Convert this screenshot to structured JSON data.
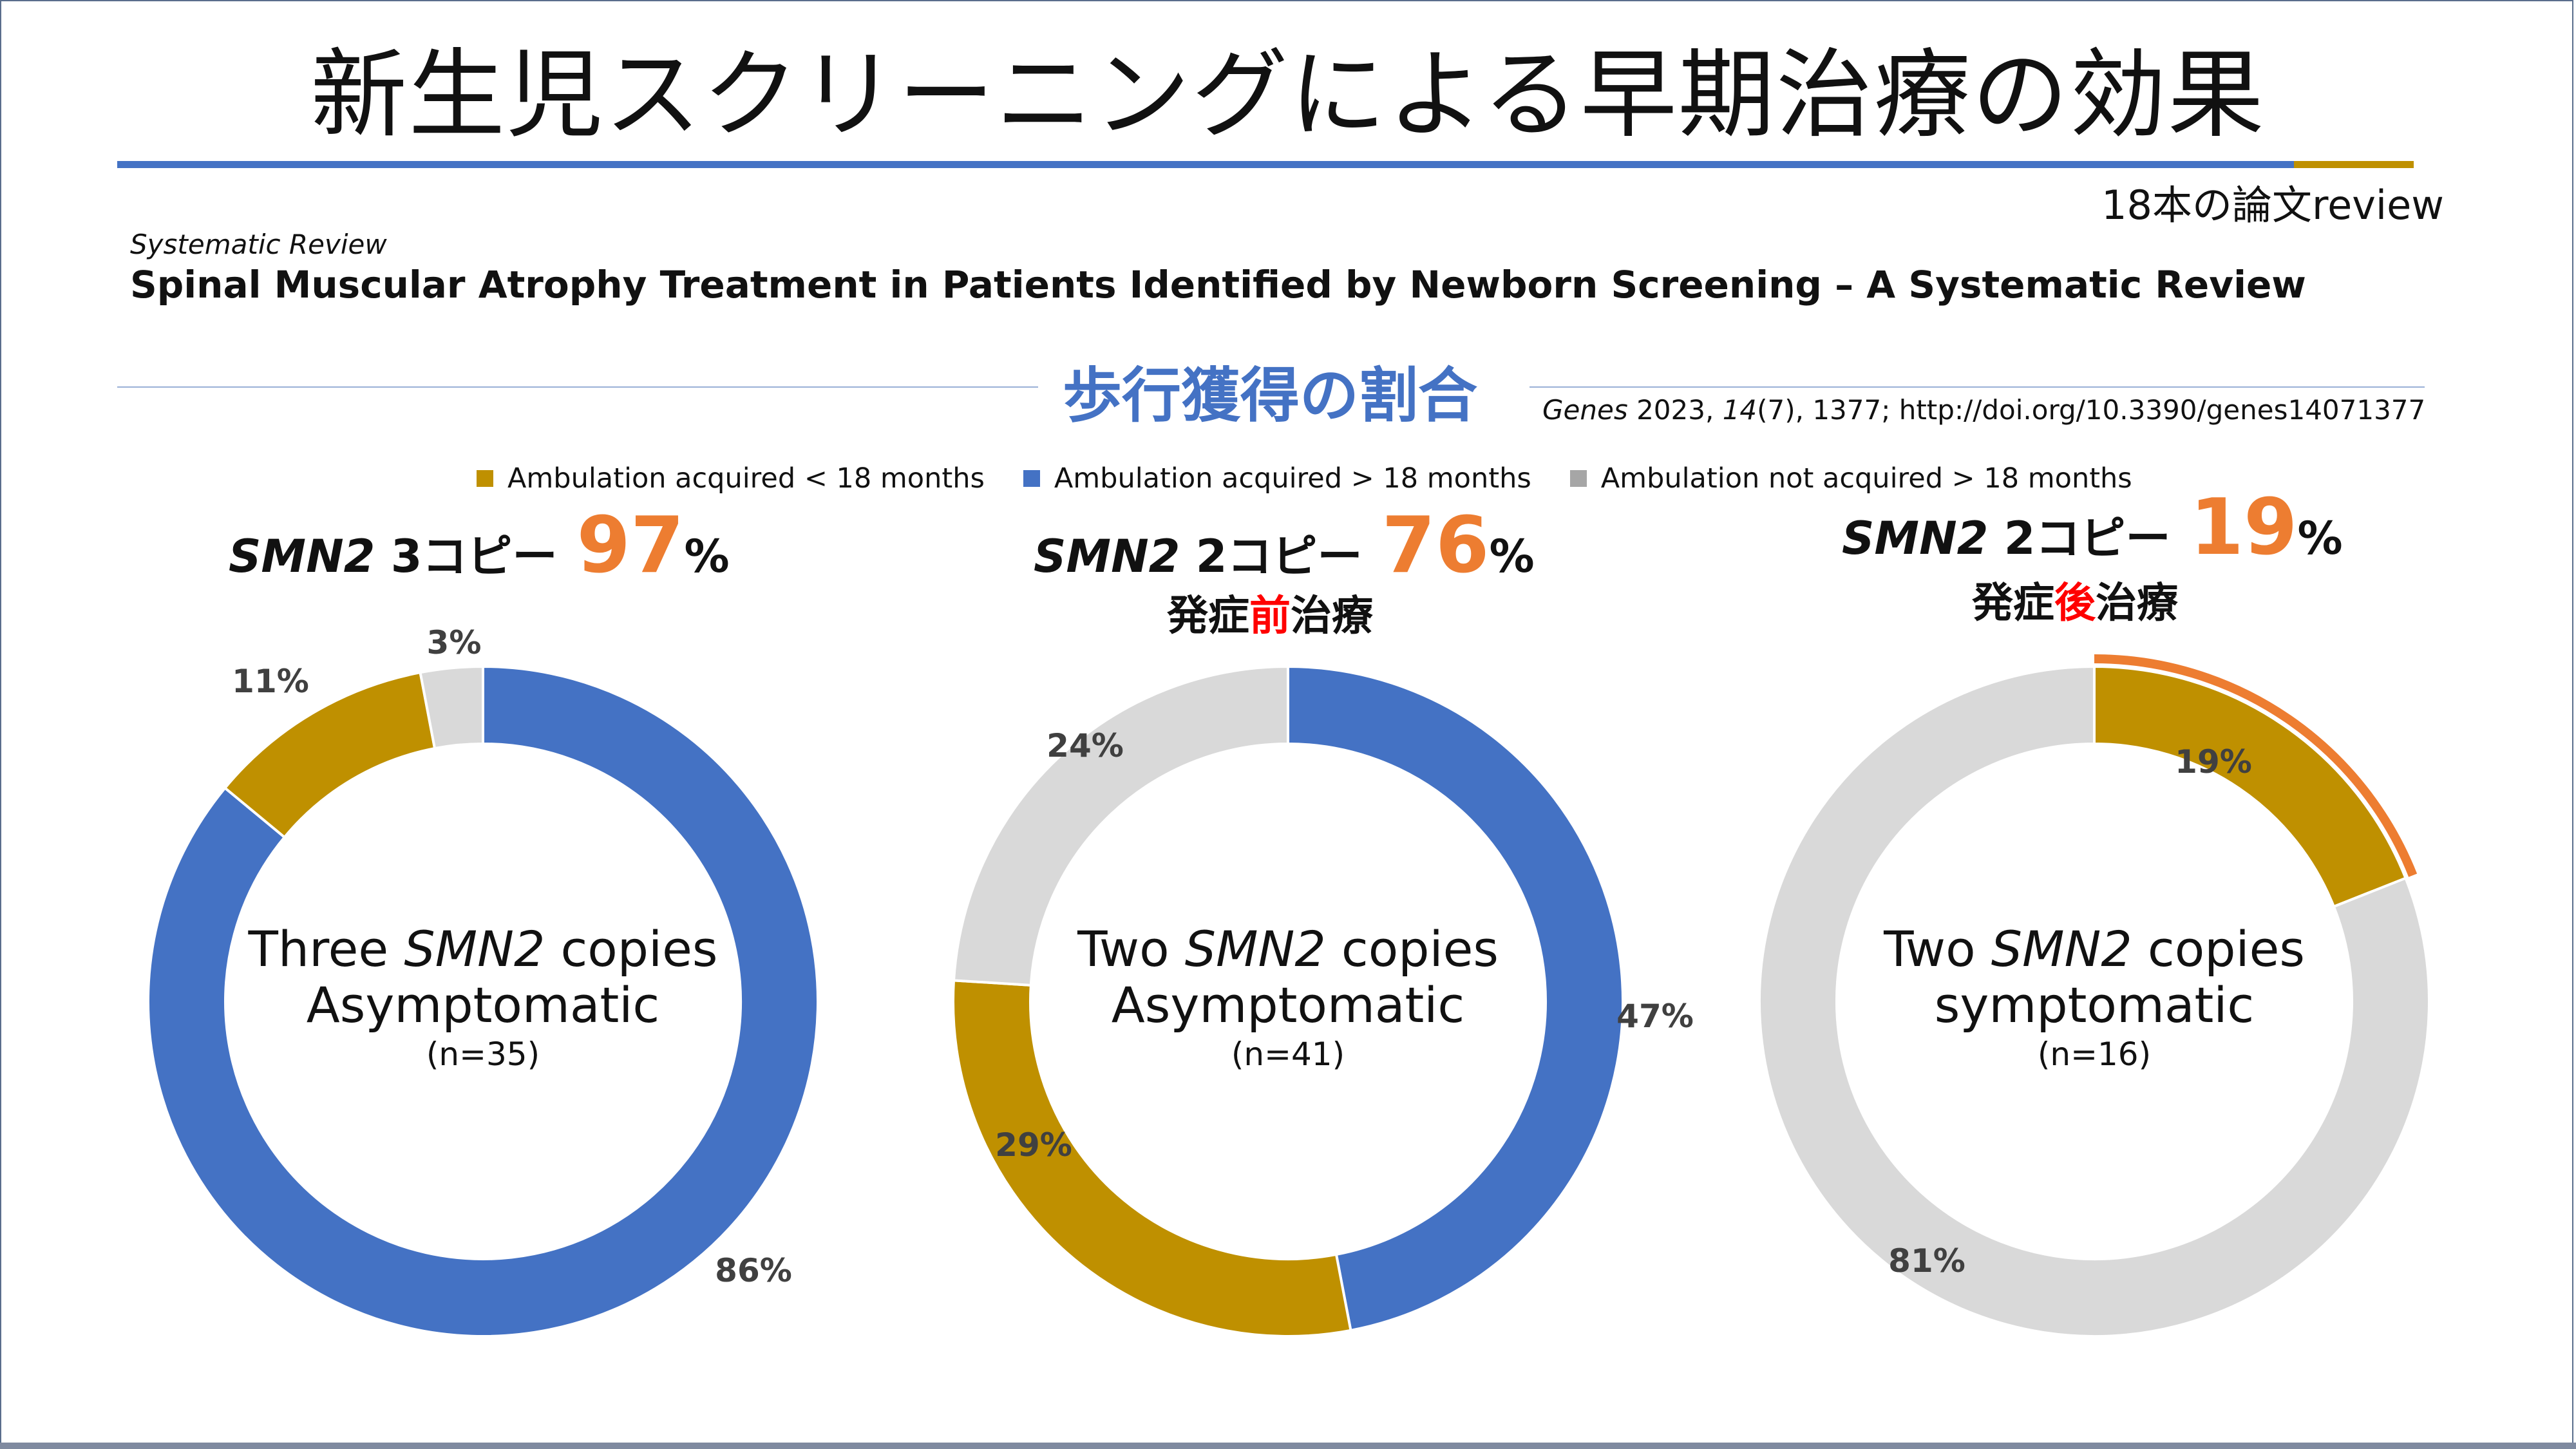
{
  "title": "新生児スクリーニングによる早期治療の効果",
  "review_note": "18本の論文review",
  "paper": {
    "label": "Systematic Review",
    "title": "Spinal Muscular Atrophy Treatment in Patients Identified by Newborn Screening – A Systematic Review",
    "citation": "Genes 2023, 14(7), 1377; http://doi.org/10.3390/genes14071377"
  },
  "section_title": "歩行獲得の割合",
  "colors": {
    "gold": "#bf9000",
    "blue": "#4472c4",
    "gray": "#d9d9d9",
    "highlight": "#ed7d31"
  },
  "legend": [
    {
      "label": "Ambulation acquired < 18 months",
      "color": "#bf9000"
    },
    {
      "label": "Ambulation acquired > 18 months",
      "color": "#4472c4"
    },
    {
      "label": "Ambulation not acquired > 18 months",
      "color": "#a6a6a6"
    }
  ],
  "headers": [
    {
      "gene": "SMN2",
      "copies": "3コピー",
      "pct": "97",
      "sign": "%",
      "sub_a": "",
      "sub_b": "",
      "sub_c": ""
    },
    {
      "gene": "SMN2",
      "copies": "2コピー",
      "pct": "76",
      "sign": "%",
      "sub_a": "発症",
      "sub_b": "前",
      "sub_c": "治療"
    },
    {
      "gene": "SMN2",
      "copies": "2コピー",
      "pct": "19",
      "sign": "%",
      "sub_a": "発症",
      "sub_b": "後",
      "sub_c": "治療"
    }
  ],
  "centers": [
    {
      "line1a": "Three ",
      "line1b": "SMN2",
      "line1c": " copies",
      "line2": "Asymptomatic",
      "n": "(n=35)"
    },
    {
      "line1a": "Two ",
      "line1b": "SMN2",
      "line1c": " copies",
      "line2": "Asymptomatic",
      "n": "(n=41)"
    },
    {
      "line1a": "Two ",
      "line1b": "SMN2",
      "line1c": " copies",
      "line2": "symptomatic",
      "n": "(n=16)"
    }
  ],
  "chart_data": [
    {
      "type": "pie",
      "categories": [
        "Ambulation acquired < 18 months",
        "Ambulation acquired > 18 months",
        "Ambulation not acquired > 18 months"
      ],
      "values": [
        11,
        86,
        3
      ],
      "labels": [
        "11%",
        "86%",
        "3%"
      ]
    },
    {
      "type": "pie",
      "categories": [
        "Ambulation acquired < 18 months",
        "Ambulation acquired > 18 months",
        "Ambulation not acquired > 18 months"
      ],
      "values": [
        29,
        47,
        24
      ],
      "labels": [
        "29%",
        "47%",
        "24%"
      ]
    },
    {
      "type": "pie",
      "categories": [
        "Ambulation acquired < 18 months",
        "Ambulation acquired > 18 months",
        "Ambulation not acquired > 18 months"
      ],
      "values": [
        19,
        0,
        81
      ],
      "labels": [
        "19%",
        "",
        "81%"
      ]
    }
  ]
}
